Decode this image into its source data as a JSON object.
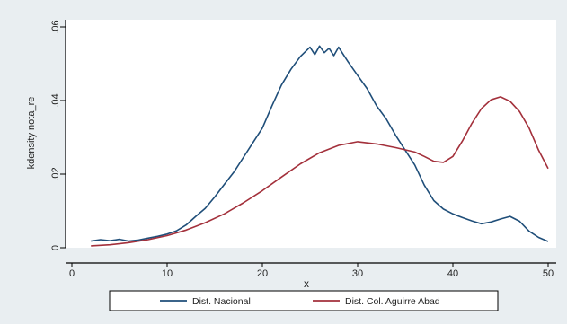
{
  "chart_data": {
    "type": "line",
    "title": "",
    "xlabel": "x",
    "ylabel": "kdensity nota_re",
    "xlim": [
      0,
      50
    ],
    "ylim": [
      0,
      0.06
    ],
    "x_ticks": [
      0,
      10,
      20,
      30,
      40,
      50
    ],
    "y_ticks": [
      0,
      0.02,
      0.04,
      0.06
    ],
    "x_tick_labels": [
      "0",
      "10",
      "20",
      "30",
      "40",
      "50"
    ],
    "y_tick_labels": [
      "0",
      ".02",
      ".04",
      ".06"
    ],
    "grid": false,
    "legend_position": "bottom",
    "series": [
      {
        "name": "Dist. Nacional",
        "color": "#1f4e79",
        "x": [
          2,
          3,
          4,
          5,
          6,
          7,
          8,
          9,
          10,
          11,
          12,
          13,
          14,
          15,
          16,
          17,
          18,
          19,
          20,
          21,
          22,
          23,
          24,
          25,
          25.5,
          26,
          26.5,
          27,
          27.5,
          28,
          28.5,
          29,
          30,
          31,
          32,
          33,
          34,
          35,
          36,
          37,
          38,
          39,
          40,
          41,
          42,
          43,
          44,
          45,
          46,
          47,
          48,
          49,
          50
        ],
        "y": [
          0.0018,
          0.0022,
          0.0019,
          0.0023,
          0.0018,
          0.0021,
          0.0026,
          0.0031,
          0.0037,
          0.0046,
          0.0062,
          0.0085,
          0.0107,
          0.0138,
          0.0172,
          0.0205,
          0.0245,
          0.0285,
          0.0325,
          0.0385,
          0.0442,
          0.0485,
          0.052,
          0.0545,
          0.0525,
          0.0548,
          0.053,
          0.0542,
          0.0522,
          0.0545,
          0.0525,
          0.0505,
          0.0468,
          0.0432,
          0.0385,
          0.035,
          0.0305,
          0.0265,
          0.0225,
          0.017,
          0.0128,
          0.0105,
          0.0092,
          0.0082,
          0.0073,
          0.0065,
          0.007,
          0.0078,
          0.0085,
          0.0072,
          0.0045,
          0.0028,
          0.0017
        ]
      },
      {
        "name": "Dist. Col. Aguirre Abad",
        "color": "#a3303b",
        "x": [
          2,
          4,
          6,
          8,
          10,
          12,
          14,
          16,
          18,
          20,
          22,
          24,
          26,
          28,
          30,
          32,
          34,
          36,
          37,
          38,
          39,
          40,
          41,
          42,
          43,
          44,
          45,
          46,
          47,
          48,
          49,
          50
        ],
        "y": [
          0.0005,
          0.0008,
          0.0014,
          0.0022,
          0.0033,
          0.0048,
          0.0068,
          0.0092,
          0.0122,
          0.0155,
          0.0192,
          0.0228,
          0.0258,
          0.0278,
          0.0288,
          0.0282,
          0.0272,
          0.026,
          0.0248,
          0.0235,
          0.0232,
          0.0248,
          0.029,
          0.0338,
          0.0378,
          0.0402,
          0.041,
          0.0398,
          0.037,
          0.0325,
          0.0265,
          0.0215
        ]
      }
    ]
  }
}
